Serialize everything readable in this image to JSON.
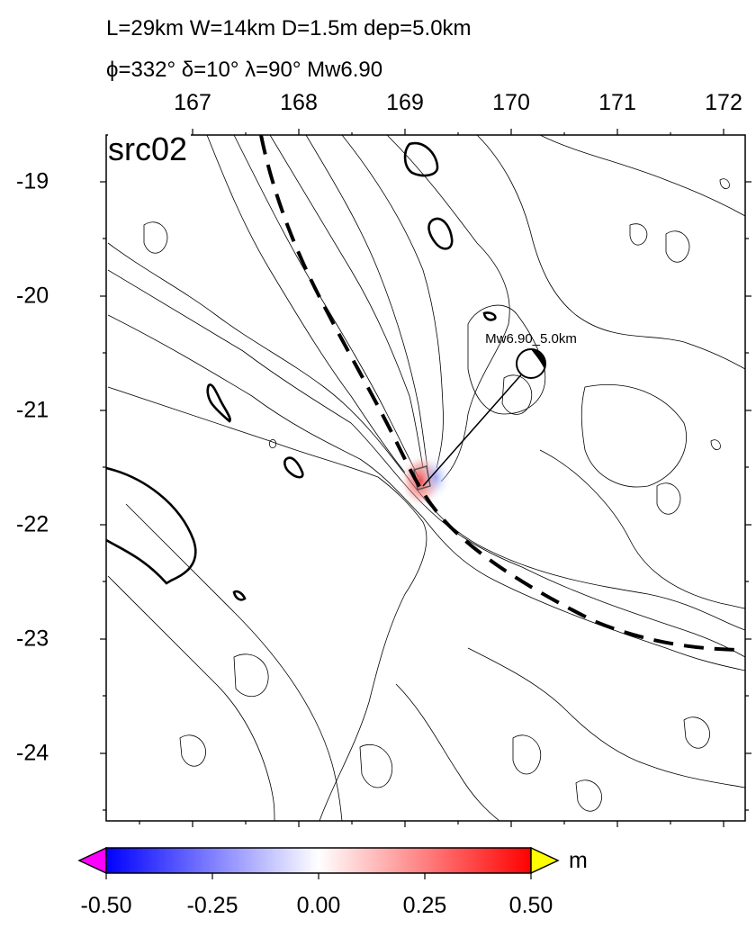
{
  "header": {
    "line1": "L=29km W=14km D=1.5m dep=5.0km",
    "line2": "ϕ=332° δ=10° λ=90° Mw6.90"
  },
  "map": {
    "panel_label": "src02",
    "lon_ticks": [
      "167",
      "168",
      "169",
      "170",
      "171",
      "172"
    ],
    "lat_ticks": [
      "-19",
      "-20",
      "-21",
      "-22",
      "-23",
      "-24"
    ],
    "lon_range": [
      166.2,
      172.2
    ],
    "lat_range": [
      -24.6,
      -18.6
    ],
    "beachball_label": "Mw6.90_5.0km",
    "epicenter": {
      "lon": 169.18,
      "lat": -21.63
    },
    "beachball": {
      "lon": 170.2,
      "lat": -20.6
    }
  },
  "colorbar": {
    "unit": "m",
    "ticks": [
      "-0.50",
      "-0.25",
      "0.00",
      "0.25",
      "0.50"
    ],
    "range": [
      -0.5,
      0.5
    ],
    "colors": {
      "min": "#0000ff",
      "mid": "#ffffff",
      "max": "#ff0000",
      "under": "#ff00ff",
      "over": "#ffff00"
    }
  }
}
